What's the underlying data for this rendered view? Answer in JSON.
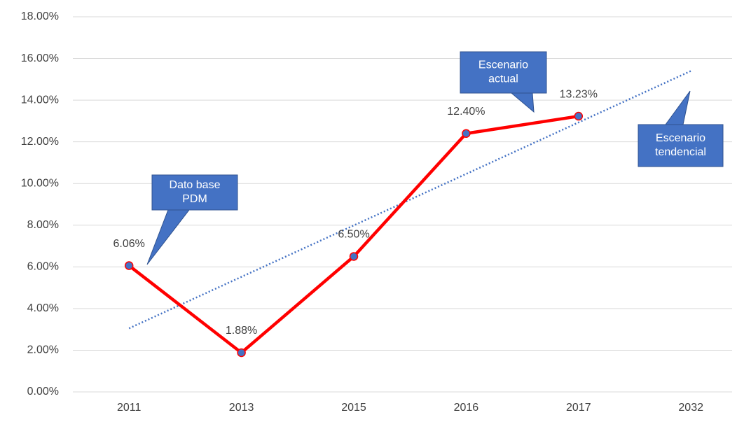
{
  "chart_data": {
    "type": "line",
    "categories": [
      "2011",
      "2013",
      "2015",
      "2016",
      "2017",
      "2032"
    ],
    "series": [
      {
        "color": "#ff0000",
        "marker_color": "#4472c4",
        "values": [
          6.06,
          1.88,
          6.5,
          12.4,
          13.23,
          null
        ],
        "value_labels": [
          "6.06%",
          "1.88%",
          "6.50%",
          "12.40%",
          "13.23%",
          null
        ]
      }
    ],
    "trendline": {
      "color": "#4472c4",
      "values": [
        3.05,
        15.4
      ]
    },
    "ylim": [
      0,
      18
    ],
    "yticks": [
      {
        "value": 0,
        "label": "0.00%"
      },
      {
        "value": 2,
        "label": "2.00%"
      },
      {
        "value": 4,
        "label": "4.00%"
      },
      {
        "value": 6,
        "label": "6.00%"
      },
      {
        "value": 8,
        "label": "8.00%"
      },
      {
        "value": 10,
        "label": "10.00%"
      },
      {
        "value": 12,
        "label": "12.00%"
      },
      {
        "value": 14,
        "label": "14.00%"
      },
      {
        "value": 16,
        "label": "16.00%"
      },
      {
        "value": 18,
        "label": "18.00%"
      }
    ],
    "grid": true,
    "annotations": [
      {
        "lines": [
          "Dato base",
          "PDM"
        ]
      },
      {
        "lines": [
          "Escenario",
          "actual"
        ]
      },
      {
        "lines": [
          "Escenario",
          "tendencial"
        ]
      }
    ]
  }
}
